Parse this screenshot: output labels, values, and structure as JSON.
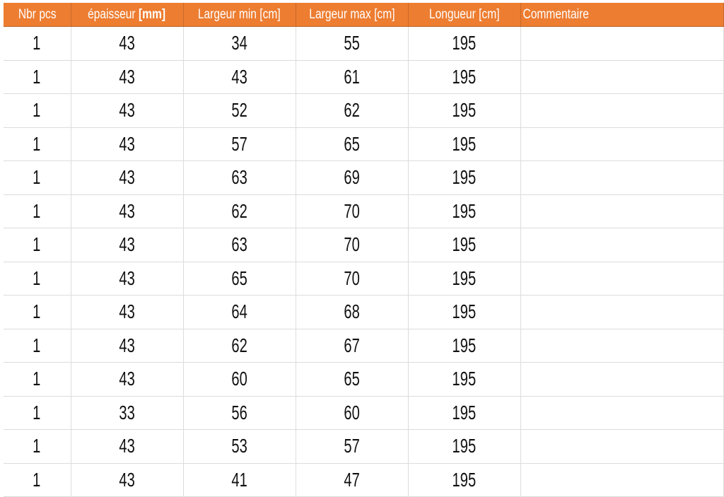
{
  "table": {
    "headers": [
      "Nbr pcs",
      "épaisseur ",
      "Largeur min [cm]",
      "Largeur max [cm]",
      "Longueur [cm]",
      "Commentaire"
    ],
    "header_unit_bold": "[mm]",
    "header_color": "#ed7d31",
    "rows": [
      [
        "1",
        "43",
        "34",
        "55",
        "195",
        ""
      ],
      [
        "1",
        "43",
        "43",
        "61",
        "195",
        ""
      ],
      [
        "1",
        "43",
        "52",
        "62",
        "195",
        ""
      ],
      [
        "1",
        "43",
        "57",
        "65",
        "195",
        ""
      ],
      [
        "1",
        "43",
        "63",
        "69",
        "195",
        ""
      ],
      [
        "1",
        "43",
        "62",
        "70",
        "195",
        ""
      ],
      [
        "1",
        "43",
        "63",
        "70",
        "195",
        ""
      ],
      [
        "1",
        "43",
        "65",
        "70",
        "195",
        ""
      ],
      [
        "1",
        "43",
        "64",
        "68",
        "195",
        ""
      ],
      [
        "1",
        "43",
        "62",
        "67",
        "195",
        ""
      ],
      [
        "1",
        "43",
        "60",
        "65",
        "195",
        ""
      ],
      [
        "1",
        "33",
        "56",
        "60",
        "195",
        ""
      ],
      [
        "1",
        "43",
        "53",
        "57",
        "195",
        ""
      ],
      [
        "1",
        "43",
        "41",
        "47",
        "195",
        ""
      ]
    ]
  }
}
